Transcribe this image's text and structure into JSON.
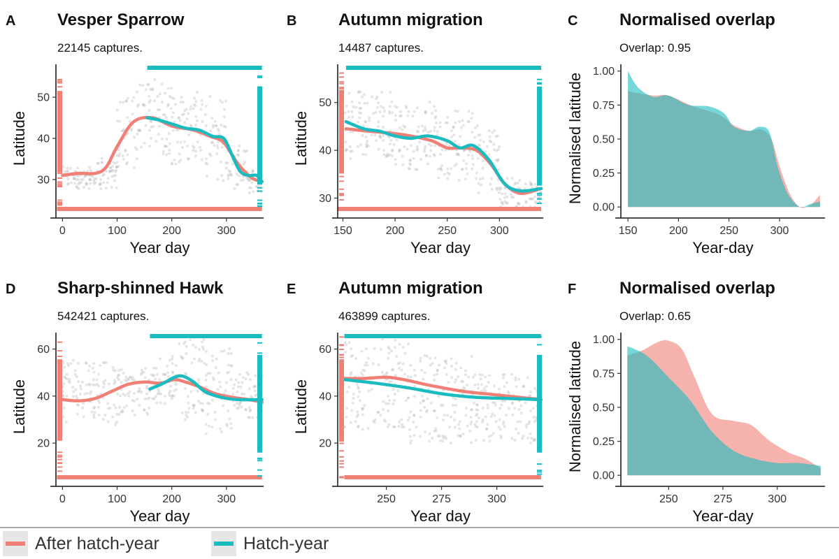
{
  "colors": {
    "adult": "#f07f76",
    "hatch": "#1bbcc0",
    "points": "#b5b5b5"
  },
  "legend": {
    "items": [
      {
        "label": "After hatch-year",
        "color": "#f07f76"
      },
      {
        "label": "Hatch-year",
        "color": "#1bbcc0"
      }
    ]
  },
  "chart_data": [
    {
      "letter": "A",
      "title": "Vesper Sparrow",
      "subtitle": "22145 captures.",
      "type": "scatter",
      "xlabel": "Year day",
      "ylabel": "Latitude",
      "xlim": [
        -12,
        368
      ],
      "ylim": [
        22,
        58
      ],
      "xticks": [
        0,
        100,
        200,
        300
      ],
      "yticks": [
        30,
        40,
        50
      ],
      "cloud": [
        [
          0,
          10,
          30,
          33
        ],
        [
          10,
          60,
          28,
          33
        ],
        [
          60,
          100,
          28,
          35
        ],
        [
          100,
          140,
          33,
          52
        ],
        [
          140,
          200,
          36,
          54
        ],
        [
          200,
          260,
          34,
          52
        ],
        [
          260,
          300,
          30,
          50
        ],
        [
          300,
          340,
          27,
          38
        ],
        [
          340,
          368,
          27,
          32
        ]
      ],
      "series": [
        {
          "name": "After hatch-year",
          "x": [
            0,
            30,
            60,
            80,
            100,
            130,
            165,
            200,
            240,
            270,
            295,
            320,
            345,
            365
          ],
          "y": [
            31,
            31.5,
            31.5,
            33,
            38,
            44,
            45,
            43,
            42,
            40.5,
            39,
            34,
            30.5,
            29.5
          ]
        },
        {
          "name": "Hatch-year",
          "x": [
            155,
            175,
            200,
            225,
            250,
            275,
            295,
            310,
            325,
            340,
            355,
            365
          ],
          "y": [
            45,
            44.5,
            43.5,
            42.5,
            42,
            40.5,
            40,
            36,
            32,
            31,
            31,
            29.5
          ]
        }
      ],
      "rug": {
        "top": [
          155,
          365
        ],
        "bottom": [
          -10,
          365
        ]
      }
    },
    {
      "letter": "B",
      "title": "Autumn migration",
      "subtitle": "14487 captures.",
      "type": "scatter",
      "xlabel": "Year day",
      "ylabel": "Latitude",
      "xlim": [
        145,
        342
      ],
      "ylim": [
        27,
        58
      ],
      "xticks": [
        150,
        200,
        250,
        300
      ],
      "yticks": [
        30,
        40,
        50
      ],
      "cloud": [
        [
          152,
          200,
          38,
          52
        ],
        [
          200,
          240,
          36,
          50
        ],
        [
          240,
          280,
          34,
          48
        ],
        [
          280,
          300,
          30,
          44
        ],
        [
          300,
          320,
          28,
          34
        ],
        [
          320,
          340,
          28,
          33
        ]
      ],
      "series": [
        {
          "name": "After hatch-year",
          "x": [
            153,
            175,
            200,
            215,
            235,
            250,
            262,
            278,
            292,
            305,
            320,
            340
          ],
          "y": [
            44.5,
            44,
            43.5,
            43,
            42,
            40.5,
            40.5,
            40,
            37,
            33,
            31,
            32
          ]
        },
        {
          "name": "Hatch-year",
          "x": [
            153,
            170,
            185,
            200,
            215,
            232,
            250,
            262,
            275,
            290,
            305,
            320,
            340
          ],
          "y": [
            46,
            44.5,
            44,
            43,
            42.5,
            43,
            42,
            40.5,
            41,
            38,
            33,
            31.5,
            32
          ]
        }
      ],
      "rug": {
        "top": [
          153,
          340
        ],
        "bottom": [
          145,
          340
        ]
      }
    },
    {
      "letter": "C",
      "title": "Normalised overlap",
      "subtitle": "Overlap: 0.95",
      "type": "area",
      "xlabel": "Year-day",
      "ylabel": "Normalised latitude",
      "xlim": [
        143,
        345
      ],
      "ylim": [
        -0.04,
        1.05
      ],
      "xticks": [
        150,
        200,
        250,
        300
      ],
      "yticks": [
        0.0,
        0.25,
        0.5,
        0.75,
        1.0
      ],
      "ytick_labels": [
        "0.00",
        "0.25",
        "0.50",
        "0.75",
        "1.00"
      ],
      "series": [
        {
          "name": "After hatch-year",
          "x": [
            150,
            175,
            190,
            215,
            240,
            255,
            270,
            282,
            292,
            300,
            310,
            320,
            330,
            340
          ],
          "y": [
            0.85,
            0.82,
            0.82,
            0.74,
            0.68,
            0.6,
            0.56,
            0.57,
            0.5,
            0.3,
            0.1,
            0.0,
            0.01,
            0.09
          ]
        },
        {
          "name": "Hatch-year",
          "x": [
            150,
            160,
            175,
            190,
            210,
            230,
            245,
            255,
            270,
            280,
            290,
            298,
            308,
            320,
            330,
            340
          ],
          "y": [
            1.0,
            0.88,
            0.81,
            0.82,
            0.75,
            0.74,
            0.69,
            0.59,
            0.56,
            0.59,
            0.55,
            0.3,
            0.1,
            0.0,
            0.02,
            0.04
          ]
        }
      ]
    },
    {
      "letter": "D",
      "title": "Sharp-shinned Hawk",
      "subtitle": "542421 captures.",
      "type": "scatter",
      "xlabel": "Year day",
      "ylabel": "Latitude",
      "xlim": [
        -12,
        368
      ],
      "ylim": [
        4,
        67
      ],
      "xticks": [
        0,
        100,
        200,
        300
      ],
      "yticks": [
        20,
        40,
        60
      ],
      "cloud": [
        [
          0,
          100,
          28,
          55
        ],
        [
          100,
          160,
          32,
          52
        ],
        [
          160,
          210,
          36,
          58
        ],
        [
          210,
          260,
          30,
          66
        ],
        [
          260,
          310,
          22,
          60
        ],
        [
          310,
          368,
          30,
          50
        ]
      ],
      "series": [
        {
          "name": "After hatch-year",
          "x": [
            0,
            30,
            60,
            90,
            120,
            150,
            180,
            205,
            225,
            250,
            280,
            310,
            340,
            365
          ],
          "y": [
            38.5,
            38,
            39,
            42,
            45,
            46,
            45.5,
            47,
            46,
            44,
            41,
            39.5,
            38.5,
            37.5
          ]
        },
        {
          "name": "Hatch-year",
          "x": [
            160,
            185,
            205,
            220,
            240,
            260,
            290,
            320,
            365
          ],
          "y": [
            43,
            45.5,
            48,
            48.5,
            46,
            42,
            39.5,
            38.5,
            38.5
          ]
        }
      ],
      "rug": {
        "top": [
          160,
          365
        ],
        "bottom": [
          -10,
          365
        ]
      }
    },
    {
      "letter": "E",
      "title": "Autumn migration",
      "subtitle": "463899 captures.",
      "type": "scatter",
      "xlabel": "Year day",
      "ylabel": "Latitude",
      "xlim": [
        228,
        321
      ],
      "ylim": [
        4,
        67
      ],
      "xticks": [
        250,
        275,
        300
      ],
      "yticks": [
        20,
        40,
        60
      ],
      "cloud": [
        [
          230,
          260,
          26,
          64
        ],
        [
          260,
          290,
          20,
          58
        ],
        [
          290,
          320,
          20,
          50
        ]
      ],
      "series": [
        {
          "name": "After hatch-year",
          "x": [
            231,
            240,
            250,
            258,
            270,
            285,
            300,
            320
          ],
          "y": [
            47.5,
            47.5,
            48,
            47,
            44.5,
            42,
            40.5,
            38.5
          ]
        },
        {
          "name": "Hatch-year",
          "x": [
            231,
            245,
            260,
            275,
            290,
            305,
            320
          ],
          "y": [
            47,
            45.5,
            43.5,
            41,
            39.5,
            39,
            38.5
          ]
        }
      ],
      "rug": {
        "top": [
          231,
          320
        ],
        "bottom": [
          231,
          320
        ]
      }
    },
    {
      "letter": "F",
      "title": "Normalised overlap",
      "subtitle": "Overlap: 0.65",
      "type": "area",
      "xlabel": "Year-day",
      "ylabel": "Normalised latitude",
      "xlim": [
        228,
        322
      ],
      "ylim": [
        -0.04,
        1.05
      ],
      "xticks": [
        250,
        275,
        300
      ],
      "yticks": [
        0.0,
        0.25,
        0.5,
        0.75,
        1.0
      ],
      "ytick_labels": [
        "0.00",
        "0.25",
        "0.50",
        "0.75",
        "1.00"
      ],
      "series": [
        {
          "name": "After hatch-year",
          "x": [
            231,
            238,
            245,
            250,
            256,
            262,
            270,
            280,
            288,
            296,
            305,
            313,
            320
          ],
          "y": [
            0.88,
            0.92,
            0.98,
            0.99,
            0.93,
            0.72,
            0.45,
            0.4,
            0.37,
            0.26,
            0.17,
            0.12,
            0.05
          ]
        },
        {
          "name": "Hatch-year",
          "x": [
            231,
            240,
            250,
            260,
            270,
            280,
            290,
            300,
            310,
            320
          ],
          "y": [
            0.95,
            0.88,
            0.72,
            0.55,
            0.32,
            0.18,
            0.12,
            0.09,
            0.09,
            0.07
          ]
        }
      ]
    }
  ]
}
